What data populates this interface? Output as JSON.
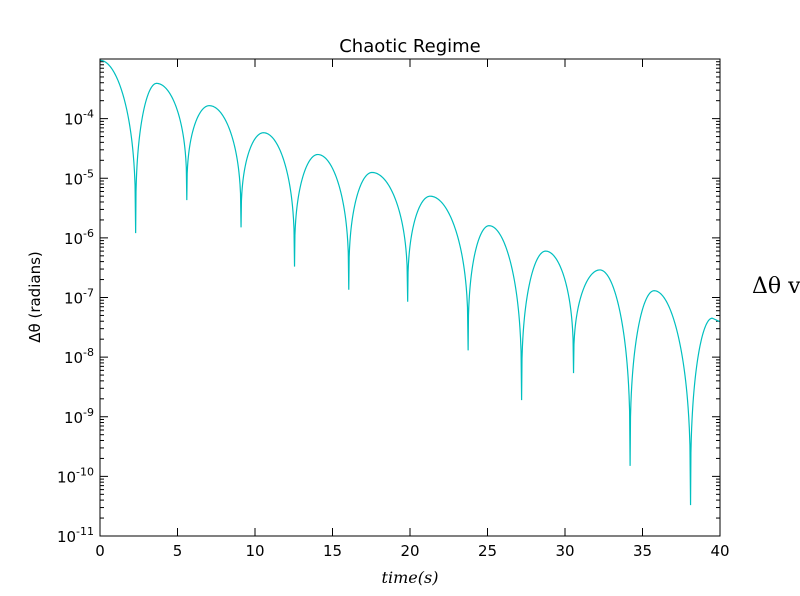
{
  "chart_data": {
    "type": "line",
    "title": "Chaotic Regime",
    "xlabel": "time(s)",
    "ylabel": "Δθ (radians)",
    "xlim": [
      0,
      40
    ],
    "ylim": [
      1e-11,
      0.001
    ],
    "yscale": "log",
    "x_ticks": [
      0,
      5,
      10,
      15,
      20,
      25,
      30,
      35,
      40
    ],
    "x_tick_labels": [
      "0",
      "5",
      "10",
      "15",
      "20",
      "25",
      "30",
      "35",
      "40"
    ],
    "y_ticks": [
      1e-11,
      1e-10,
      1e-09,
      1e-08,
      1e-07,
      1e-06,
      1e-05,
      0.0001
    ],
    "y_tick_labels": [
      {
        "base": "10",
        "exp": "-11"
      },
      {
        "base": "10",
        "exp": "-10"
      },
      {
        "base": "10",
        "exp": "-9"
      },
      {
        "base": "10",
        "exp": "-8"
      },
      {
        "base": "10",
        "exp": "-7"
      },
      {
        "base": "10",
        "exp": "-6"
      },
      {
        "base": "10",
        "exp": "-5"
      },
      {
        "base": "10",
        "exp": "-4"
      }
    ],
    "grid": false,
    "series": [
      {
        "color": "#00bfbf",
        "peaks": [
          {
            "x": 0.0,
            "y": 0.00095
          },
          {
            "x": 3.65,
            "y": 0.00039
          },
          {
            "x": 7.05,
            "y": 0.000165
          },
          {
            "x": 10.55,
            "y": 5.8e-05
          },
          {
            "x": 14.05,
            "y": 2.5e-05
          },
          {
            "x": 17.55,
            "y": 1.25e-05
          },
          {
            "x": 21.3,
            "y": 5e-06
          },
          {
            "x": 25.1,
            "y": 1.6e-06
          },
          {
            "x": 28.75,
            "y": 6e-07
          },
          {
            "x": 32.25,
            "y": 2.9e-07
          },
          {
            "x": 35.75,
            "y": 1.3e-07
          },
          {
            "x": 39.5,
            "y": 4.5e-08
          }
        ],
        "troughs": [
          {
            "x": 2.3,
            "y": 1.2e-06
          },
          {
            "x": 5.6,
            "y": 4.3e-06
          },
          {
            "x": 9.1,
            "y": 1.5e-06
          },
          {
            "x": 12.55,
            "y": 3.3e-07
          },
          {
            "x": 16.05,
            "y": 1.35e-07
          },
          {
            "x": 19.85,
            "y": 8.5e-08
          },
          {
            "x": 23.75,
            "y": 1.3e-08
          },
          {
            "x": 27.2,
            "y": 1.9e-09
          },
          {
            "x": 30.55,
            "y": 5.4e-09
          },
          {
            "x": 34.2,
            "y": 1.5e-10
          },
          {
            "x": 38.1,
            "y": 3.3e-11
          }
        ]
      }
    ]
  },
  "side_text": "Δθ v"
}
